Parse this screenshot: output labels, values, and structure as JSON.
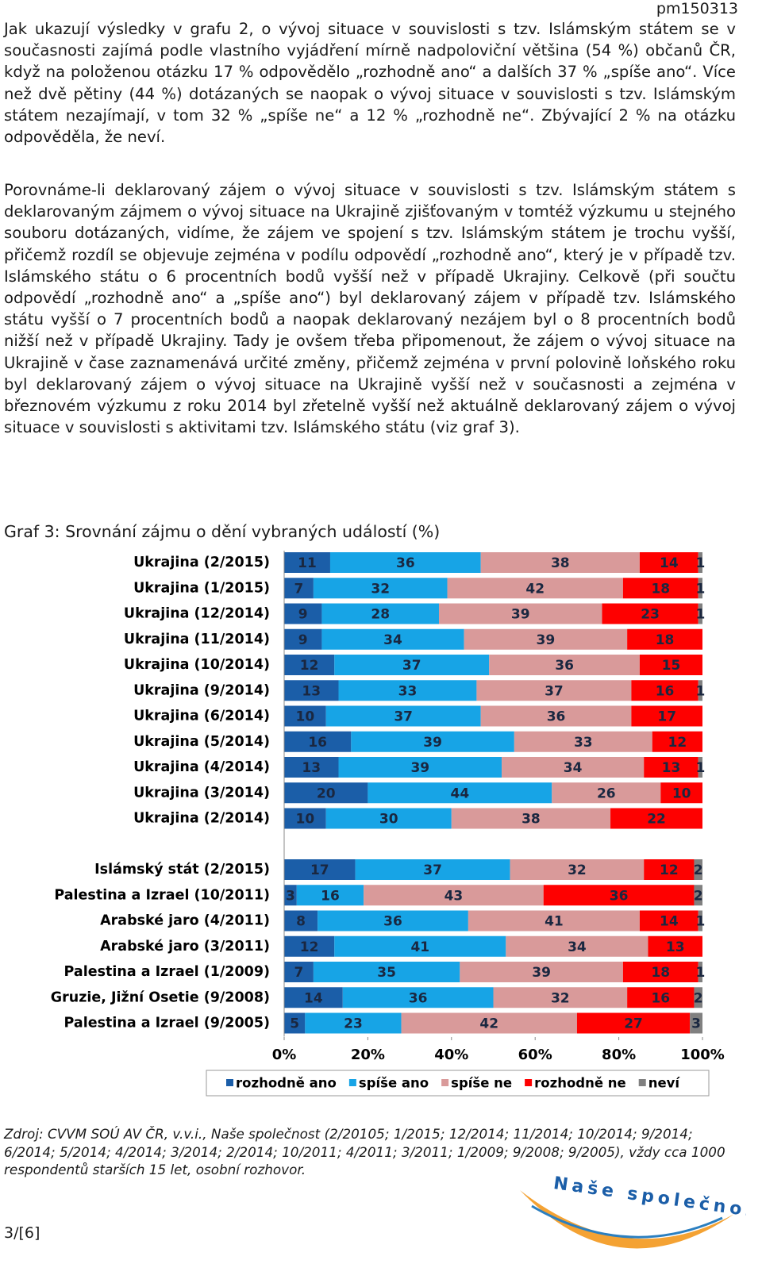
{
  "document": {
    "header": "pm150313",
    "paragraphs": [
      "Jak ukazují výsledky v grafu 2, o vývoj situace v souvislosti s tzv. Islámským státem se v současnosti zajímá podle vlastního vyjádření mírně nadpoloviční většina (54 %) občanů ČR, když na položenou otázku 17 % odpovědělo „rozhodně ano“ a dalších 37 % „spíše ano“. Více než dvě pětiny (44 %) dotázaných se naopak o vývoj situace v souvislosti s tzv. Islámským státem nezajímají, v tom 32 % „spíše ne“ a 12 % „rozhodně ne“. Zbývající 2 % na otázku odpověděla, že neví.",
      "Porovnáme-li deklarovaný zájem o vývoj situace v souvislosti s tzv. Islámským státem s deklarovaným zájmem o vývoj situace na Ukrajině zjišťovaným v tomtéž výzkumu u stejného souboru dotázaných, vidíme, že zájem ve spojení s tzv. Islámským státem je trochu vyšší, přičemž rozdíl se objevuje zejména v podílu odpovědí „rozhodně ano“, který je v případě tzv. Islámského státu o 6 procentních bodů vyšší než v případě Ukrajiny. Celkově (při součtu odpovědí „rozhodně ano“ a „spíše ano“) byl deklarovaný zájem v případě tzv. Islámského státu vyšší o 7 procentních bodů a naopak deklarovaný nezájem byl o 8 procentních bodů nižší než v případě Ukrajiny. Tady je ovšem třeba připomenout, že zájem o vývoj situace na Ukrajině v čase zaznamenává určité změny, přičemž zejména v první polovině loňského roku byl deklarovaný zájem o vývoj situace na Ukrajině vyšší než v současnosti a zejména v březnovém výzkumu z roku 2014 byl zřetelně vyšší než aktuálně deklarovaný zájem o vývoj situace v souvislosti s aktivitami tzv. Islámského státu (viz graf 3)."
    ],
    "source": "Zdroj: CVVM SOÚ AV ČR, v.v.i., Naše společnost (2/20105; 1/2015; 12/2014; 11/2014; 10/2014; 9/2014; 6/2014; 5/2014; 4/2014; 3/2014; 2/2014; 10/2011; 4/2011; 3/2011; 1/2009; 9/2008; 9/2005), vždy cca 1000 respondentů starších 15 let, osobní rozhovor.",
    "logo": "Naše společnost",
    "page_number": "3/[6]"
  },
  "chart_data": {
    "type": "stacked-barh",
    "title": "Graf 3: Srovnání zájmu o dění vybraných událostí (%)",
    "categories": [
      "Ukrajina (2/2015)",
      "Ukrajina (1/2015)",
      "Ukrajina (12/2014)",
      "Ukrajina (11/2014)",
      "Ukrajina (10/2014)",
      "Ukrajina (9/2014)",
      "Ukrajina (6/2014)",
      "Ukrajina (5/2014)",
      "Ukrajina (4/2014)",
      "Ukrajina (3/2014)",
      "Ukrajina (2/2014)",
      "Islámský stát (2/2015)",
      "Palestina a Izrael (10/2011)",
      "Arabské jaro (4/2011)",
      "Arabské jaro (3/2011)",
      "Palestina a Izrael (1/2009)",
      "Gruzie, Jižní Osetie (9/2008)",
      "Palestina a Izrael (9/2005)"
    ],
    "series": [
      {
        "name": "rozhodně ano",
        "color": "#1b5ea8",
        "values": [
          11,
          7,
          9,
          9,
          12,
          13,
          10,
          16,
          13,
          20,
          10,
          17,
          3,
          8,
          12,
          7,
          14,
          5
        ]
      },
      {
        "name": "spíše ano",
        "color": "#17a4e6",
        "values": [
          36,
          32,
          28,
          34,
          37,
          33,
          37,
          39,
          39,
          44,
          30,
          37,
          16,
          36,
          41,
          35,
          36,
          23
        ]
      },
      {
        "name": "spíše ne",
        "color": "#d99a9a",
        "values": [
          38,
          42,
          39,
          39,
          36,
          37,
          36,
          33,
          34,
          26,
          38,
          32,
          43,
          41,
          34,
          39,
          32,
          42
        ]
      },
      {
        "name": "rozhodně ne",
        "color": "#fe0000",
        "values": [
          14,
          18,
          23,
          18,
          15,
          16,
          17,
          12,
          13,
          10,
          22,
          12,
          36,
          14,
          13,
          18,
          16,
          27
        ]
      },
      {
        "name": "neví",
        "color": "#808080",
        "values": [
          1,
          1,
          1,
          null,
          null,
          1,
          null,
          null,
          1,
          null,
          null,
          2,
          2,
          1,
          null,
          1,
          2,
          3
        ]
      }
    ],
    "xlim": [
      0,
      100
    ],
    "xticks": [
      {
        "value": 0,
        "label": "0%"
      },
      {
        "value": 20,
        "label": "20%"
      },
      {
        "value": 40,
        "label": "40%"
      },
      {
        "value": 60,
        "label": "60%"
      },
      {
        "value": 80,
        "label": "80%"
      },
      {
        "value": 100,
        "label": "100%"
      }
    ],
    "grid": false,
    "legend": "bottom"
  }
}
